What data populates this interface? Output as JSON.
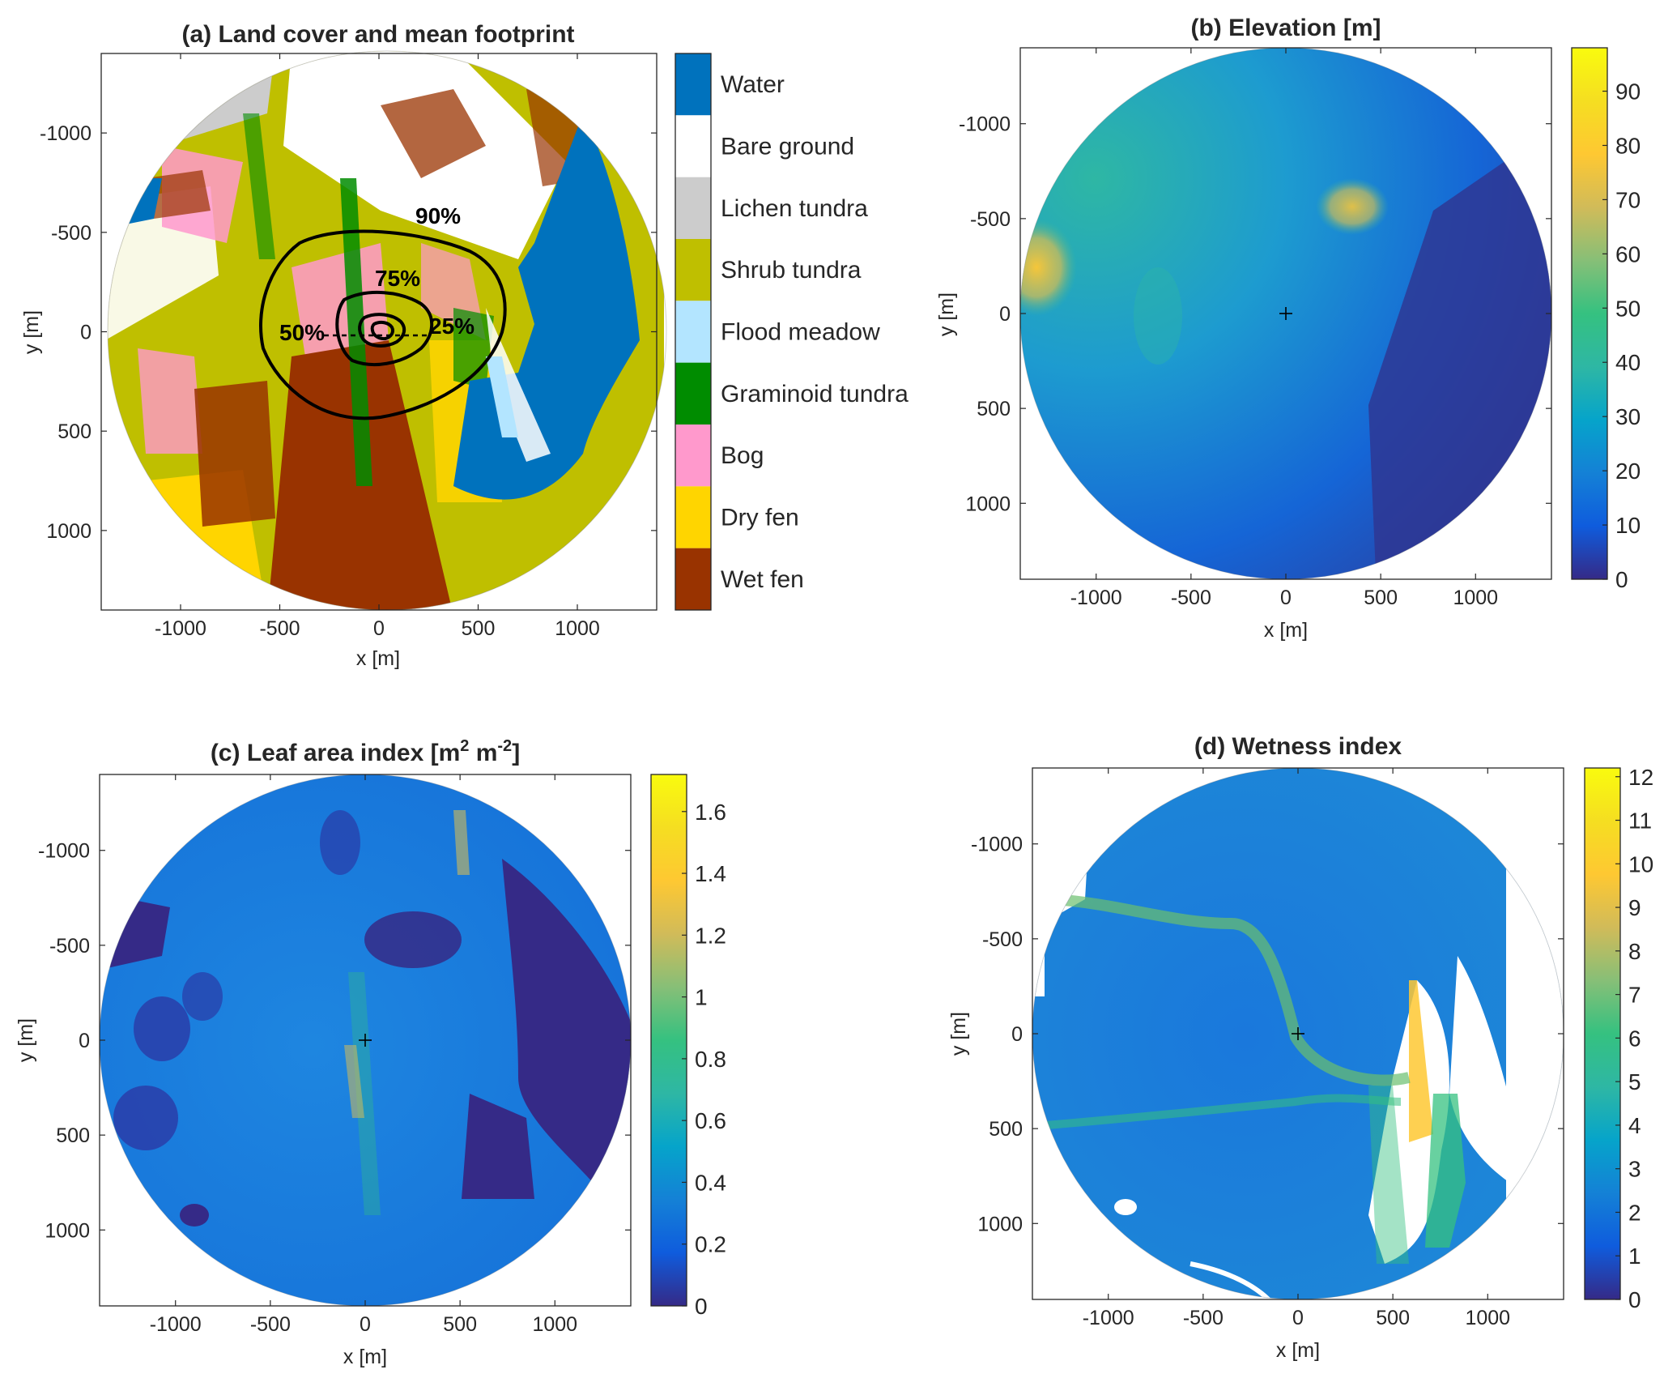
{
  "chart_data": [
    {
      "type": "heatmap",
      "title": "(a) Land cover and mean footprint",
      "xlabel": "x [m]",
      "ylabel": "y [m]",
      "xlim": [
        -1400,
        1400
      ],
      "ylim": [
        -1400,
        1400
      ],
      "y_reversed": true,
      "x_ticks": [
        -1000,
        -500,
        0,
        500,
        1000
      ],
      "y_ticks": [
        -1000,
        -500,
        0,
        500,
        1000
      ],
      "categories": [
        {
          "name": "Water",
          "color": "#0072BD"
        },
        {
          "name": "Bare ground",
          "color": "#FFFFFF"
        },
        {
          "name": "Lichen tundra",
          "color": "#CCCCCC"
        },
        {
          "name": "Shrub tundra",
          "color": "#BFBF00"
        },
        {
          "name": "Flood meadow",
          "color": "#B3E5FF"
        },
        {
          "name": "Graminoid tundra",
          "color": "#008C00"
        },
        {
          "name": "Bog",
          "color": "#FF99CC"
        },
        {
          "name": "Dry fen",
          "color": "#FFD500"
        },
        {
          "name": "Wet fen",
          "color": "#993300"
        }
      ],
      "footprint_contours": [
        {
          "label": "90%",
          "radius_x": 570,
          "radius_y": 440
        },
        {
          "label": "75%",
          "radius_x": 270,
          "radius_y": 190
        },
        {
          "label": "50%",
          "radius_x": 140,
          "radius_y": 100
        },
        {
          "label": "25%",
          "radius_x": 60,
          "radius_y": 45
        }
      ]
    },
    {
      "type": "heatmap",
      "title": "(b) Elevation [m]",
      "xlabel": "x [m]",
      "ylabel": "y [m]",
      "xlim": [
        -1400,
        1400
      ],
      "ylim": [
        -1400,
        1400
      ],
      "y_reversed": true,
      "x_ticks": [
        -1000,
        -500,
        0,
        500,
        1000
      ],
      "y_ticks": [
        -1000,
        -500,
        0,
        500,
        1000
      ],
      "colorbar": {
        "min": 0,
        "max": 98,
        "ticks": [
          0,
          10,
          20,
          30,
          40,
          50,
          60,
          70,
          80,
          90
        ]
      },
      "tower_marker": [
        0,
        0
      ]
    },
    {
      "type": "heatmap",
      "title": "(c) Leaf area index [m",
      "title_sup1": "2",
      "title_mid": " m",
      "title_sup2": "-2",
      "title_end": "]",
      "xlabel": "x [m]",
      "ylabel": "y [m]",
      "xlim": [
        -1400,
        1400
      ],
      "ylim": [
        -1400,
        1400
      ],
      "y_reversed": true,
      "x_ticks": [
        -1000,
        -500,
        0,
        500,
        1000
      ],
      "y_ticks": [
        -1000,
        -500,
        0,
        500,
        1000
      ],
      "colorbar": {
        "min": 0,
        "max": 1.72,
        "ticks": [
          0,
          0.2,
          0.4,
          0.6,
          0.8,
          1,
          1.2,
          1.4,
          1.6
        ]
      },
      "tower_marker": [
        0,
        0
      ]
    },
    {
      "type": "heatmap",
      "title": "(d) Wetness index",
      "xlabel": "x [m]",
      "ylabel": "y [m]",
      "xlim": [
        -1400,
        1400
      ],
      "ylim": [
        -1400,
        1400
      ],
      "y_reversed": true,
      "x_ticks": [
        -1000,
        -500,
        0,
        500,
        1000
      ],
      "y_ticks": [
        -1000,
        -500,
        0,
        500,
        1000
      ],
      "colorbar": {
        "min": 0,
        "max": 12.2,
        "ticks": [
          0,
          1,
          2,
          3,
          4,
          5,
          6,
          7,
          8,
          9,
          10,
          11,
          12
        ]
      },
      "tower_marker": [
        0,
        0
      ]
    }
  ]
}
